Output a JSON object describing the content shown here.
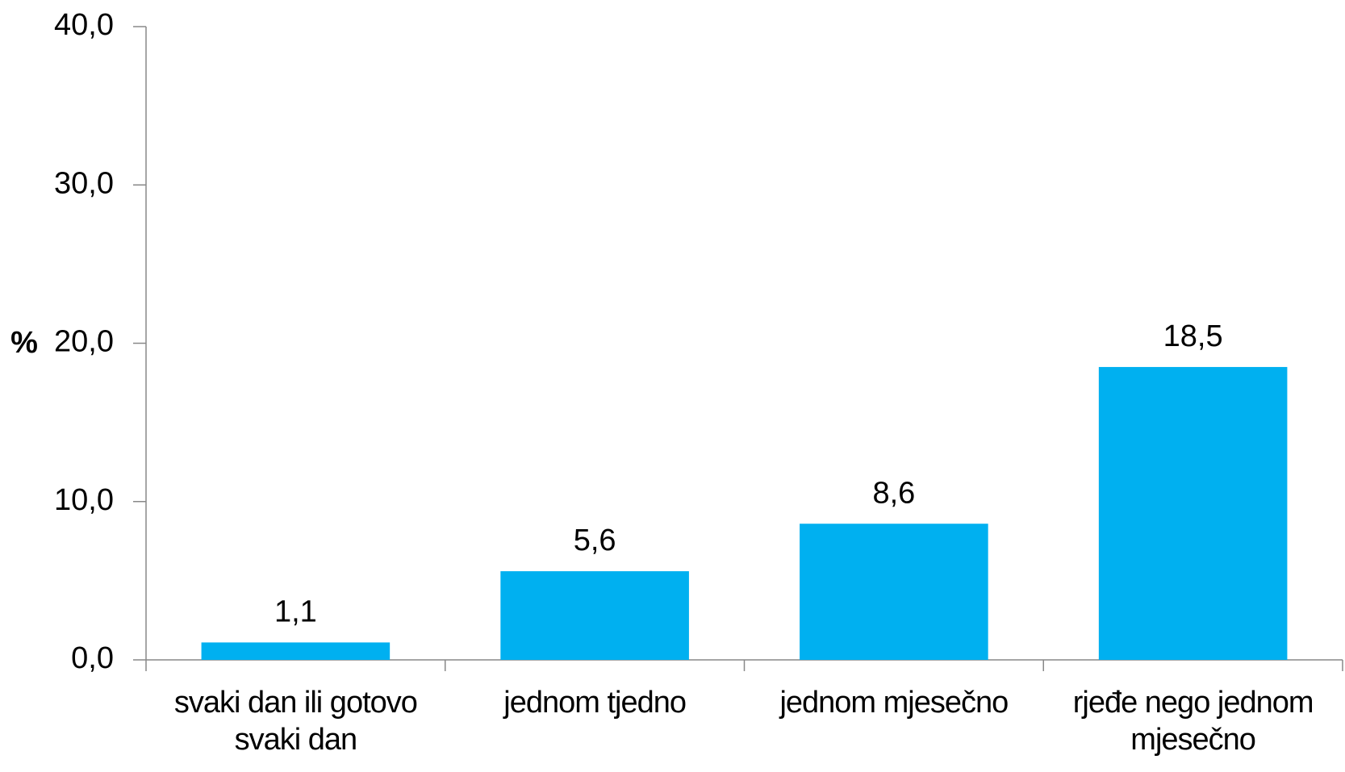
{
  "chart_data": {
    "type": "bar",
    "y_label": "%",
    "categories": [
      "svaki dan ili gotovo svaki dan",
      "jednom tjedno",
      "jednom mjesečno",
      "rjeđe nego jednom mjesečno"
    ],
    "values": [
      1.1,
      5.6,
      8.6,
      18.5
    ],
    "value_labels": [
      "1,1",
      "5,6",
      "8,6",
      "18,5"
    ],
    "color": "#00b0f0",
    "ylim": [
      0,
      40
    ],
    "yticks": [
      {
        "value": 0,
        "label": "0,0"
      },
      {
        "value": 10,
        "label": "10,0"
      },
      {
        "value": 20,
        "label": "20,0"
      },
      {
        "value": 30,
        "label": "30,0"
      },
      {
        "value": 40,
        "label": "40,0"
      }
    ]
  }
}
